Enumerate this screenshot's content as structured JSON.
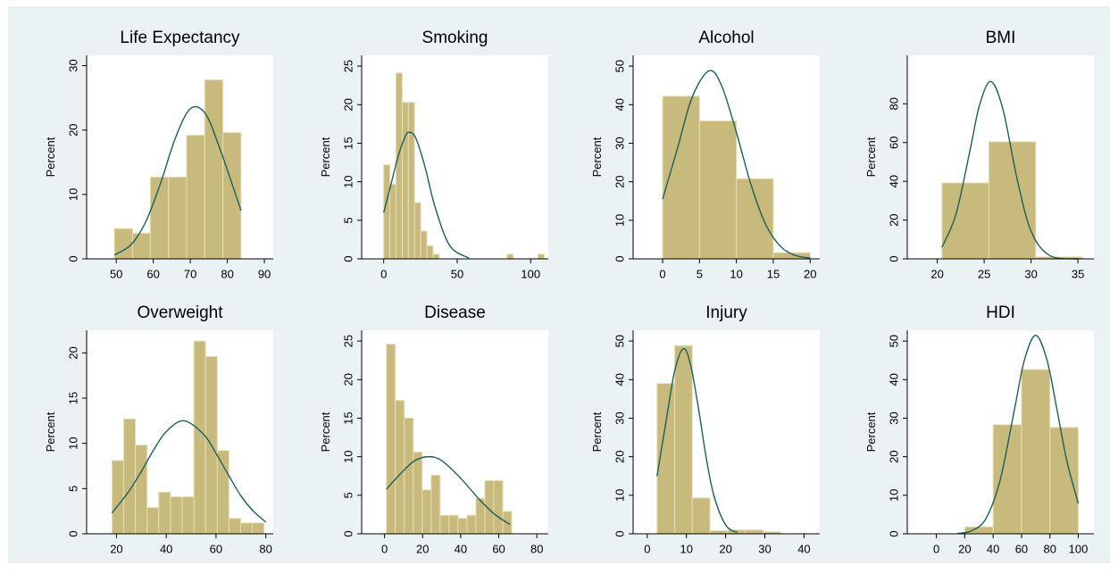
{
  "chart_data": [
    {
      "type": "histogram",
      "title": "Life Expectancy",
      "ylabel": "Percent",
      "color": "#c8ba7c",
      "bins": [
        49.5,
        54.4,
        59.2,
        64.1,
        69.0,
        73.9,
        78.8,
        83.7
      ],
      "values": [
        4.7,
        4.0,
        12.7,
        12.7,
        19.2,
        27.8,
        19.6
      ],
      "curve": {
        "color": "#1e5f5c",
        "x": [
          49.5,
          54,
          58,
          62,
          66,
          70,
          74,
          78,
          83.7
        ],
        "values": [
          0.6,
          2.2,
          5.8,
          11.8,
          18.8,
          23.3,
          22.6,
          17.1,
          7.5
        ]
      },
      "xlim": [
        42,
        92.4
      ],
      "ylim": [
        0,
        31.6
      ],
      "xticks": [
        50,
        60,
        70,
        80,
        90
      ],
      "yticks": [
        0,
        10,
        20,
        30
      ]
    },
    {
      "type": "histogram",
      "title": "Smoking",
      "ylabel": "Percent",
      "color": "#c8ba7c",
      "bins": [
        0,
        4.2,
        8.4,
        12.6,
        16.8,
        21,
        25.2,
        29.4,
        33.6,
        37.8,
        42,
        46.2,
        50.4,
        54.6,
        58.8,
        63,
        67.2,
        71.4,
        75.6,
        79.8,
        84,
        88.2,
        92.4,
        96.6,
        100.8,
        105,
        109.2
      ],
      "values": [
        12.2,
        9.7,
        24.1,
        20.3,
        20.3,
        7.3,
        3.6,
        1.7,
        0.6,
        0,
        0,
        0,
        0,
        0,
        0,
        0,
        0,
        0,
        0,
        0,
        0.6,
        0,
        0,
        0,
        0,
        0.6
      ],
      "curve": {
        "color": "#1e5f5c",
        "x": [
          0,
          5,
          10,
          15,
          18,
          22,
          28,
          35,
          45,
          58
        ],
        "values": [
          6.0,
          9.7,
          13.4,
          16.0,
          16.4,
          15.6,
          12.0,
          6.7,
          1.7,
          0.1
        ]
      },
      "xlim": [
        -15,
        112
      ],
      "ylim": [
        0,
        26.4
      ],
      "xticks": [
        0,
        50,
        100
      ],
      "yticks": [
        0,
        5,
        10,
        15,
        20,
        25
      ]
    },
    {
      "type": "histogram",
      "title": "Alcohol",
      "ylabel": "Percent",
      "color": "#c8ba7c",
      "bins": [
        0,
        5,
        10,
        15,
        20
      ],
      "values": [
        42.2,
        35.8,
        20.8,
        1.6
      ],
      "curve": {
        "color": "#1e5f5c",
        "x": [
          0,
          2,
          4,
          6.3,
          8,
          10,
          12,
          14,
          16,
          18,
          20
        ],
        "values": [
          15.5,
          28.6,
          41.9,
          48.8,
          44.9,
          32.8,
          19.1,
          8.8,
          3.2,
          0.9,
          0.2
        ]
      },
      "xlim": [
        -4,
        21.3
      ],
      "ylim": [
        0,
        52.8
      ],
      "xticks": [
        0,
        5,
        10,
        15,
        20
      ],
      "yticks": [
        0,
        10,
        20,
        30,
        40,
        50
      ]
    },
    {
      "type": "histogram",
      "title": "BMI",
      "ylabel": "Percent",
      "color": "#c8ba7c",
      "bins": [
        20.5,
        25.5,
        30.5,
        35.5
      ],
      "values": [
        39.2,
        60.4,
        1.0
      ],
      "curve": {
        "color": "#1e5f5c",
        "x": [
          20.5,
          22,
          23.5,
          24.5,
          25.7,
          27,
          28.5,
          30,
          32,
          35
        ],
        "values": [
          6.0,
          23.1,
          56.2,
          79.2,
          91.5,
          77.2,
          41.6,
          14.3,
          1.7,
          0.0
        ]
      },
      "xlim": [
        16.8,
        36.7
      ],
      "ylim": [
        0,
        105
      ],
      "xticks": [
        20,
        25,
        30,
        35
      ],
      "yticks": [
        0,
        20,
        40,
        60,
        80
      ]
    },
    {
      "type": "histogram",
      "title": "Overweight",
      "ylabel": "Percent",
      "color": "#c8ba7c",
      "bins": [
        18.2,
        22.9,
        27.6,
        32.3,
        37,
        41.7,
        46.4,
        51.1,
        55.8,
        60.5,
        65.2,
        69.9,
        74.6,
        79.3
      ],
      "values": [
        8.1,
        12.7,
        9.8,
        2.9,
        4.6,
        4.1,
        4.1,
        21.3,
        19.6,
        9.2,
        1.7,
        1.2,
        1.2
      ],
      "curve": {
        "color": "#1e5f5c",
        "x": [
          18.2,
          25,
          30,
          35,
          40,
          47,
          55,
          60,
          65,
          70,
          75,
          80
        ],
        "values": [
          2.3,
          4.7,
          6.9,
          9.3,
          11.3,
          12.5,
          11.0,
          8.9,
          6.5,
          4.2,
          2.5,
          1.3
        ]
      },
      "xlim": [
        8,
        83
      ],
      "ylim": [
        0,
        22.5
      ],
      "xticks": [
        20,
        40,
        60,
        80
      ],
      "yticks": [
        0,
        5,
        10,
        15,
        20
      ]
    },
    {
      "type": "histogram",
      "title": "Disease",
      "ylabel": "Percent",
      "color": "#c8ba7c",
      "bins": [
        1,
        5.7,
        10.4,
        15.1,
        19.8,
        24.5,
        29.2,
        33.9,
        38.6,
        43.3,
        48,
        52.7,
        57.4,
        62.1,
        66.8
      ],
      "values": [
        24.6,
        17.3,
        15.0,
        10.6,
        5.7,
        7.6,
        2.4,
        2.4,
        2.0,
        2.4,
        4.6,
        6.9,
        6.9,
        2.9
      ],
      "curve": {
        "color": "#1e5f5c",
        "x": [
          1,
          10,
          16,
          23,
          30,
          40,
          50,
          58,
          66
        ],
        "values": [
          5.8,
          8.2,
          9.5,
          10.0,
          9.5,
          7.2,
          4.4,
          2.5,
          1.2
        ]
      },
      "xlim": [
        -12,
        86
      ],
      "ylim": [
        0,
        26.4
      ],
      "xticks": [
        0,
        20,
        40,
        60,
        80
      ],
      "yticks": [
        0,
        5,
        10,
        15,
        20,
        25
      ]
    },
    {
      "type": "histogram",
      "title": "Injury",
      "ylabel": "Percent",
      "color": "#c8ba7c",
      "bins": [
        2.5,
        7,
        11.5,
        16,
        20.5,
        25,
        29.5,
        34
      ],
      "values": [
        39.0,
        48.8,
        9.3,
        0.8,
        1.0,
        1.0,
        0.5
      ],
      "curve": {
        "color": "#1e5f5c",
        "x": [
          2.5,
          5,
          7,
          9.2,
          11,
          13,
          15,
          17,
          20,
          23
        ],
        "values": [
          15.0,
          30.4,
          42.3,
          48.0,
          44.1,
          33.0,
          20.0,
          9.9,
          2.3,
          0.3
        ]
      },
      "xlim": [
        -3.6,
        44
      ],
      "ylim": [
        0,
        52.8
      ],
      "xticks": [
        0,
        10,
        20,
        30,
        40
      ],
      "yticks": [
        0,
        10,
        20,
        30,
        40,
        50
      ]
    },
    {
      "type": "histogram",
      "title": "HDI",
      "ylabel": "Percent",
      "color": "#c8ba7c",
      "bins": [
        20,
        40,
        60,
        80,
        100
      ],
      "values": [
        1.8,
        28.3,
        42.6,
        27.6
      ],
      "curve": {
        "color": "#1e5f5c",
        "x": [
          15,
          25,
          35,
          45,
          55,
          62,
          70,
          78,
          85,
          92,
          100
        ],
        "values": [
          0.1,
          0.8,
          4.0,
          14.0,
          32.2,
          45.0,
          51.5,
          45.0,
          32.2,
          18.8,
          7.9
        ]
      },
      "xlim": [
        -20.5,
        111
      ],
      "ylim": [
        0,
        52.8
      ],
      "xticks": [
        0,
        20,
        40,
        60,
        80,
        100
      ],
      "yticks": [
        0,
        10,
        20,
        30,
        40,
        50
      ]
    }
  ]
}
